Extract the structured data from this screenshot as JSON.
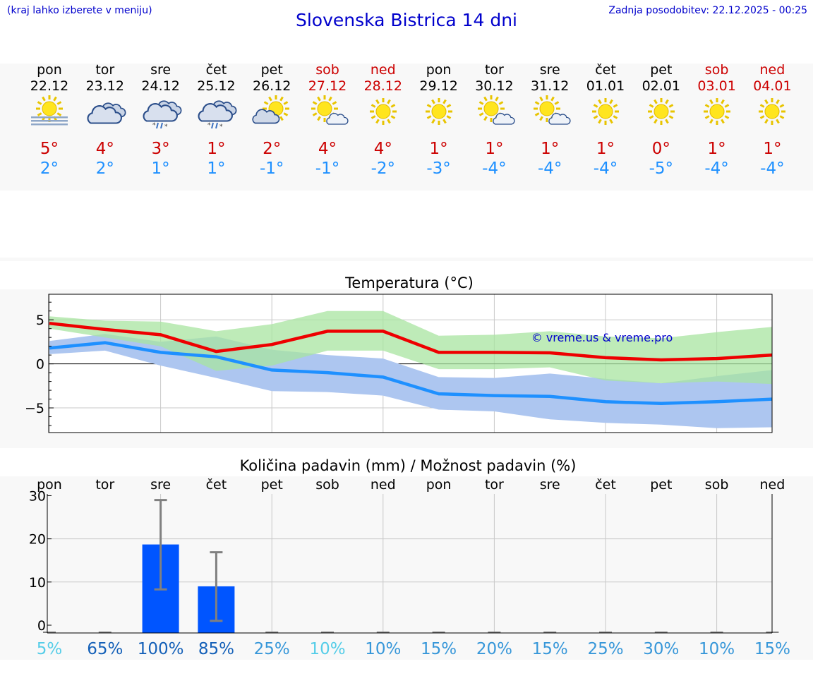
{
  "header": {
    "hint": "(kraj lahko izberete v meniju)",
    "title": "Slovenska Bistrica 14 dni",
    "updated": "Zadnja posodobitev: 22.12.2025 - 00:25"
  },
  "days": [
    {
      "name": "pon",
      "date": "22.12",
      "weekend": false,
      "icon": "sun-fog-icon",
      "tmax": "5°",
      "tmin": "2°"
    },
    {
      "name": "tor",
      "date": "23.12",
      "weekend": false,
      "icon": "cloud-icon",
      "tmax": "4°",
      "tmin": "2°"
    },
    {
      "name": "sre",
      "date": "24.12",
      "weekend": false,
      "icon": "cloud-sleet-icon",
      "tmax": "3°",
      "tmin": "1°"
    },
    {
      "name": "čet",
      "date": "25.12",
      "weekend": false,
      "icon": "cloud-sleet-icon",
      "tmax": "1°",
      "tmin": "1°"
    },
    {
      "name": "pet",
      "date": "26.12",
      "weekend": false,
      "icon": "sun-cloud-icon",
      "tmax": "2°",
      "tmin": "-1°"
    },
    {
      "name": "sob",
      "date": "27.12",
      "weekend": true,
      "icon": "sun-small-cloud-icon",
      "tmax": "4°",
      "tmin": "-1°"
    },
    {
      "name": "ned",
      "date": "28.12",
      "weekend": true,
      "icon": "sun-icon",
      "tmax": "4°",
      "tmin": "-2°"
    },
    {
      "name": "pon",
      "date": "29.12",
      "weekend": false,
      "icon": "sun-icon",
      "tmax": "1°",
      "tmin": "-3°"
    },
    {
      "name": "tor",
      "date": "30.12",
      "weekend": false,
      "icon": "sun-small-cloud-icon",
      "tmax": "1°",
      "tmin": "-4°"
    },
    {
      "name": "sre",
      "date": "31.12",
      "weekend": false,
      "icon": "sun-small-cloud-icon",
      "tmax": "1°",
      "tmin": "-4°"
    },
    {
      "name": "čet",
      "date": "01.01",
      "weekend": false,
      "icon": "sun-icon",
      "tmax": "1°",
      "tmin": "-4°"
    },
    {
      "name": "pet",
      "date": "02.01",
      "weekend": false,
      "icon": "sun-icon",
      "tmax": "0°",
      "tmin": "-5°"
    },
    {
      "name": "sob",
      "date": "03.01",
      "weekend": true,
      "icon": "sun-icon",
      "tmax": "1°",
      "tmin": "-4°"
    },
    {
      "name": "ned",
      "date": "04.01",
      "weekend": true,
      "icon": "sun-icon",
      "tmax": "1°",
      "tmin": "-4°"
    }
  ],
  "colors": {
    "max_line": "#ee0000",
    "min_line": "#1e90ff",
    "max_band": "#a8e4a0",
    "min_band": "#adc6f0",
    "overlap_band": "#7cc7a8",
    "bar": "#0055ff",
    "errbar": "#808080",
    "title_blue": "#0000cc",
    "weekend": "#cc0000"
  },
  "chart_data": [
    {
      "type": "line",
      "title": "Temperatura (°C)",
      "watermark": "© vreme.us & vreme.pro",
      "x": [
        0,
        1,
        2,
        3,
        4,
        5,
        6,
        7,
        8,
        9,
        10,
        11,
        12,
        13
      ],
      "yticks": [
        5,
        0,
        -5
      ],
      "ytick_labels": [
        "5",
        "0",
        "−5"
      ],
      "ylim": [
        -7.8,
        7.9
      ],
      "series": [
        {
          "name": "max",
          "values": [
            4.6,
            3.9,
            3.3,
            1.4,
            2.2,
            3.7,
            3.7,
            1.3,
            1.3,
            1.25,
            0.7,
            0.45,
            0.6,
            1.0
          ],
          "band_low": [
            4.0,
            3.0,
            2.0,
            -0.8,
            -0.2,
            1.5,
            1.5,
            -0.6,
            -0.6,
            -0.4,
            -1.9,
            -2.2,
            -2.0,
            -2.3
          ],
          "band_high": [
            5.4,
            4.9,
            4.8,
            3.7,
            4.5,
            6.0,
            6.0,
            3.2,
            3.3,
            3.7,
            3.1,
            2.9,
            3.6,
            4.2
          ]
        },
        {
          "name": "min",
          "values": [
            1.8,
            2.4,
            1.3,
            0.8,
            -0.7,
            -1.0,
            -1.5,
            -3.4,
            -3.6,
            -3.7,
            -4.3,
            -4.5,
            -4.3,
            -4.0
          ],
          "band_low": [
            1.1,
            1.5,
            -0.2,
            -1.6,
            -3.1,
            -3.2,
            -3.6,
            -5.2,
            -5.4,
            -6.3,
            -6.7,
            -6.9,
            -7.3,
            -7.2
          ],
          "band_high": [
            2.6,
            3.4,
            2.5,
            3.1,
            1.6,
            1.0,
            0.6,
            -1.5,
            -1.6,
            -1.1,
            -1.7,
            -2.2,
            -1.4,
            -0.7
          ]
        }
      ]
    },
    {
      "type": "bar",
      "title": "Količina padavin (mm) / Možnost padavin (%)",
      "categories": [
        "pon",
        "tor",
        "sre",
        "čet",
        "pet",
        "sob",
        "ned",
        "pon",
        "tor",
        "sre",
        "čet",
        "pet",
        "sob",
        "ned"
      ],
      "values": [
        0,
        0,
        18.7,
        9.0,
        0,
        0,
        0,
        0,
        0,
        0,
        0,
        0,
        0,
        0
      ],
      "err_low": [
        0,
        0,
        8.3,
        1.0,
        0,
        0,
        0,
        0,
        0,
        0,
        0,
        0,
        0,
        0
      ],
      "err_high": [
        0,
        0,
        29.0,
        16.9,
        0,
        0,
        0,
        0,
        0,
        0,
        0,
        0,
        0,
        0
      ],
      "yticks": [
        30,
        20,
        10,
        0
      ],
      "ylim": [
        -1.8,
        30.4
      ],
      "chance": [
        "5%",
        "65%",
        "100%",
        "85%",
        "25%",
        "10%",
        "10%",
        "15%",
        "20%",
        "15%",
        "25%",
        "30%",
        "10%",
        "15%"
      ],
      "chance_colors": [
        "#55cde8",
        "#1460b8",
        "#1460b8",
        "#1460b8",
        "#3797d9",
        "#55cde8",
        "#3797d9",
        "#3797d9",
        "#3797d9",
        "#3797d9",
        "#3797d9",
        "#3797d9",
        "#3797d9",
        "#3797d9"
      ]
    }
  ]
}
